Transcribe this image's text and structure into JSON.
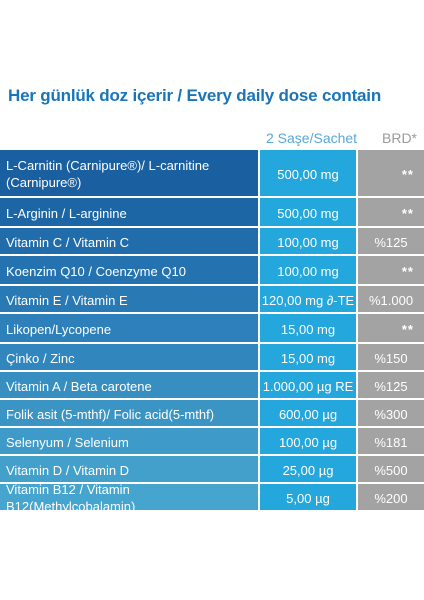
{
  "title": "Her günlük doz içerir / Every daily dose contain",
  "headers": {
    "sachet": "2 Saşe/Sachet",
    "brd": "BRD*"
  },
  "colors": {
    "title": "#1a75b8",
    "amount_bg": "#23a7dc",
    "brd_bg": "#a3a3a3",
    "row_gradient": [
      "#1a5f9f",
      "#1d66a5",
      "#216dab",
      "#2473b0",
      "#2879b4",
      "#2d80b9",
      "#3187bd",
      "#368ec1",
      "#3a94c4",
      "#3e9ac8",
      "#42a0cb",
      "#46a5ce"
    ]
  },
  "rows": [
    {
      "name": "L-Carnitin (Carnipure®)/ L-carnitine (Carnipure®)",
      "amount": "500,00 mg",
      "brd": "**"
    },
    {
      "name": "L-Arginin / L-arginine",
      "amount": "500,00 mg",
      "brd": "**"
    },
    {
      "name": "Vitamin C / Vitamin C",
      "amount": "100,00 mg",
      "brd": "%125"
    },
    {
      "name": "Koenzim Q10 / Coenzyme Q10",
      "amount": "100,00 mg",
      "brd": "**"
    },
    {
      "name": "Vitamin E / Vitamin E",
      "amount": "120,00 mg ∂-TE",
      "brd": "%1.000"
    },
    {
      "name": "Likopen/Lycopene",
      "amount": "15,00 mg",
      "brd": "**"
    },
    {
      "name": "Çinko / Zinc",
      "amount": "15,00 mg",
      "brd": "%150"
    },
    {
      "name": "Vitamin A / Beta carotene",
      "amount": "1.000,00 µg RE",
      "brd": "%125"
    },
    {
      "name": "Folik asit (5-mthf)/ Folic acid(5-mthf)",
      "amount": "600,00  µg",
      "brd": "%300"
    },
    {
      "name": "Selenyum / Selenium",
      "amount": "100,00  µg",
      "brd": "%181"
    },
    {
      "name": "Vitamin D / Vitamin D",
      "amount": "25,00  µg",
      "brd": "%500"
    },
    {
      "name": "Vitamin B12 / Vitamin B12(Methylcobalamin)",
      "amount": "5,00   µg",
      "brd": "%200"
    }
  ]
}
